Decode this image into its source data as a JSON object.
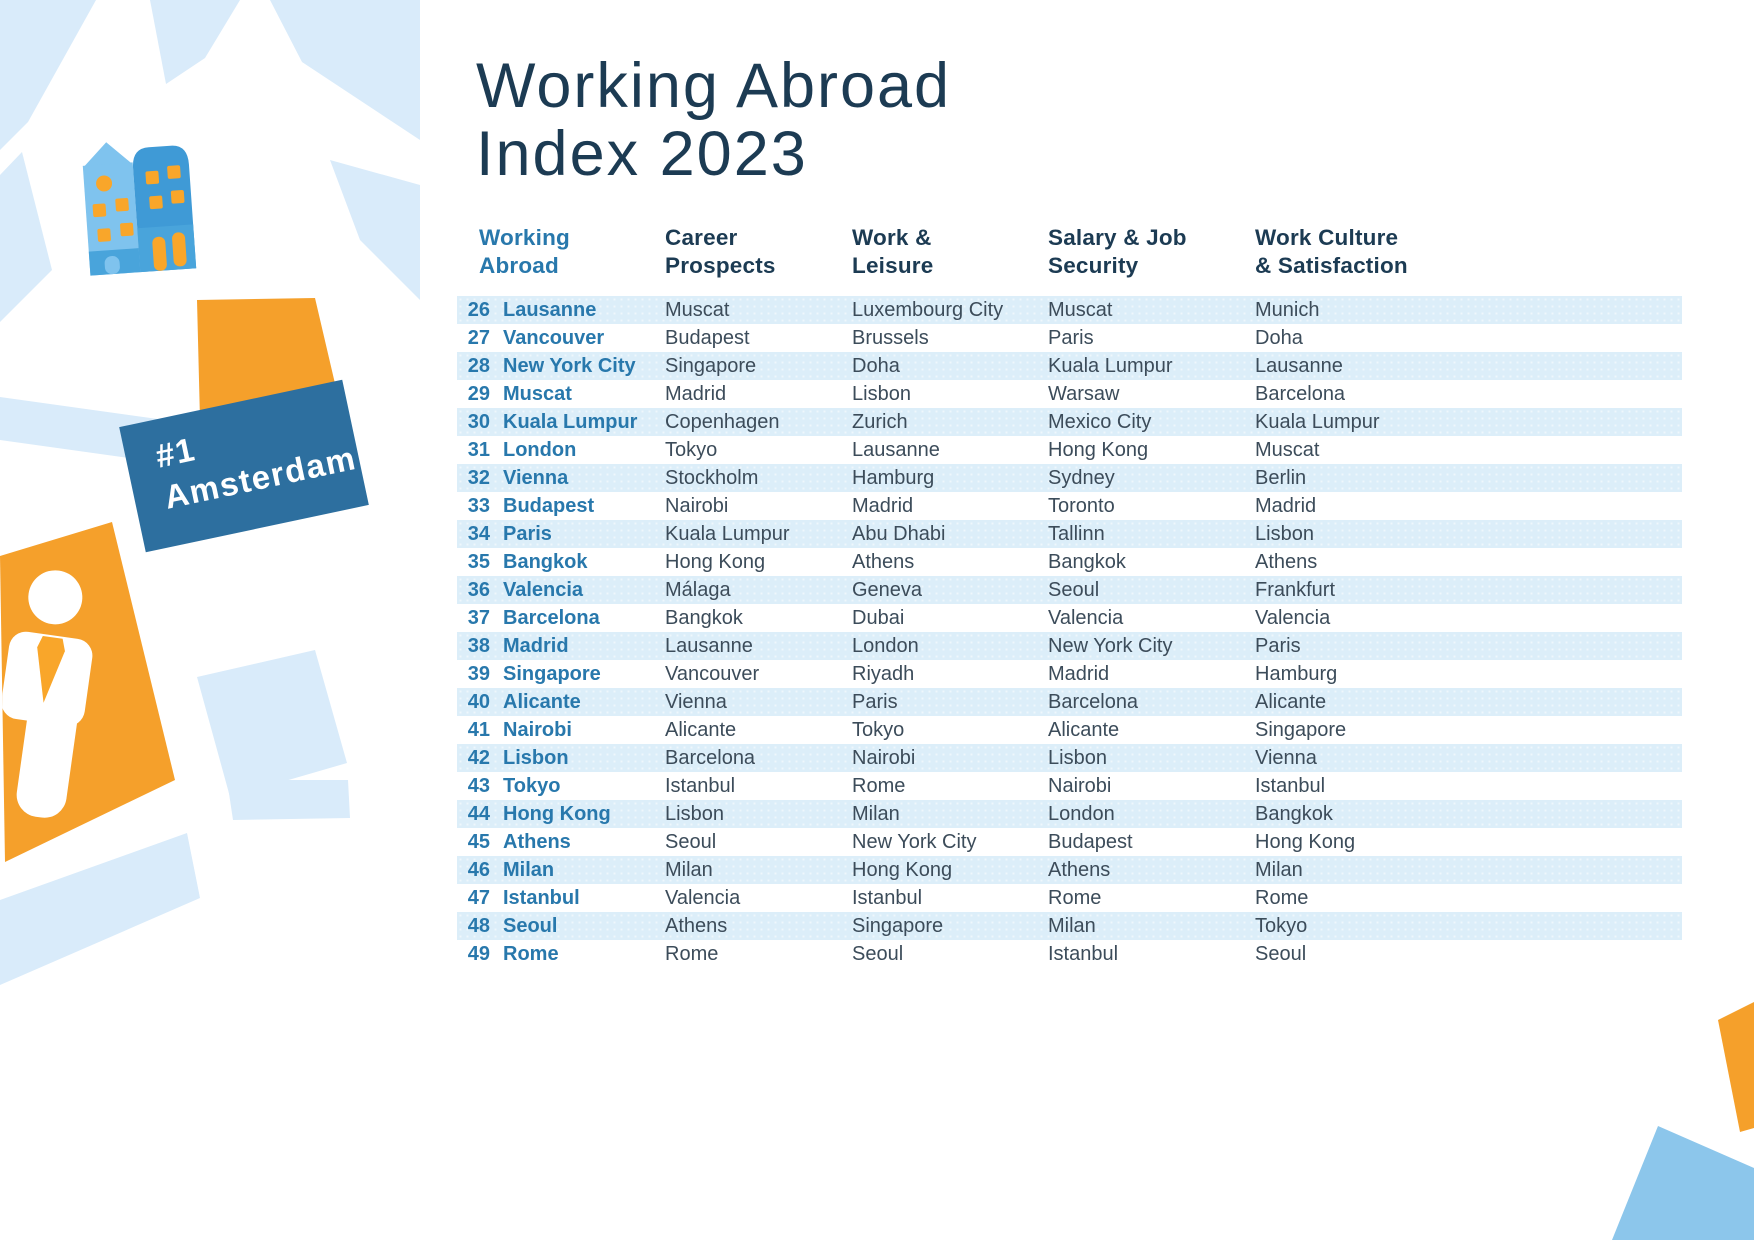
{
  "title": {
    "line1": "Working Abroad",
    "line2": "Index 2023"
  },
  "badge": {
    "line1": "#1",
    "line2": "Amsterdam"
  },
  "chart_data": {
    "type": "table",
    "title": "Working Abroad Index 2023",
    "columns": [
      "Working\nAbroad",
      "Career\nProspects",
      "Work &\nLeisure",
      "Salary & Job\nSecurity",
      "Work Culture\n& Satisfaction"
    ],
    "rows": [
      [
        "26",
        "Lausanne",
        "Muscat",
        "Luxembourg City",
        "Muscat",
        "Munich"
      ],
      [
        "27",
        "Vancouver",
        "Budapest",
        "Brussels",
        "Paris",
        "Doha"
      ],
      [
        "28",
        "New York City",
        "Singapore",
        "Doha",
        "Kuala Lumpur",
        "Lausanne"
      ],
      [
        "29",
        "Muscat",
        "Madrid",
        "Lisbon",
        "Warsaw",
        "Barcelona"
      ],
      [
        "30",
        "Kuala Lumpur",
        "Copenhagen",
        "Zurich",
        "Mexico City",
        "Kuala Lumpur"
      ],
      [
        "31",
        "London",
        "Tokyo",
        "Lausanne",
        "Hong Kong",
        "Muscat"
      ],
      [
        "32",
        "Vienna",
        "Stockholm",
        "Hamburg",
        "Sydney",
        "Berlin"
      ],
      [
        "33",
        "Budapest",
        "Nairobi",
        "Madrid",
        "Toronto",
        "Madrid"
      ],
      [
        "34",
        "Paris",
        "Kuala Lumpur",
        "Abu Dhabi",
        "Tallinn",
        "Lisbon"
      ],
      [
        "35",
        "Bangkok",
        "Hong Kong",
        "Athens",
        "Bangkok",
        "Athens"
      ],
      [
        "36",
        "Valencia",
        "Málaga",
        "Geneva",
        "Seoul",
        "Frankfurt"
      ],
      [
        "37",
        "Barcelona",
        "Bangkok",
        "Dubai",
        "Valencia",
        "Valencia"
      ],
      [
        "38",
        "Madrid",
        "Lausanne",
        "London",
        "New York City",
        "Paris"
      ],
      [
        "39",
        "Singapore",
        "Vancouver",
        "Riyadh",
        "Madrid",
        "Hamburg"
      ],
      [
        "40",
        "Alicante",
        "Vienna",
        "Paris",
        "Barcelona",
        "Alicante"
      ],
      [
        "41",
        "Nairobi",
        "Alicante",
        "Tokyo",
        "Alicante",
        "Singapore"
      ],
      [
        "42",
        "Lisbon",
        "Barcelona",
        "Nairobi",
        "Lisbon",
        "Vienna"
      ],
      [
        "43",
        "Tokyo",
        "Istanbul",
        "Rome",
        "Nairobi",
        "Istanbul"
      ],
      [
        "44",
        "Hong Kong",
        "Lisbon",
        "Milan",
        "London",
        "Bangkok"
      ],
      [
        "45",
        "Athens",
        "Seoul",
        "New York City",
        "Budapest",
        "Hong Kong"
      ],
      [
        "46",
        "Milan",
        "Milan",
        "Hong Kong",
        "Athens",
        "Milan"
      ],
      [
        "47",
        "Istanbul",
        "Valencia",
        "Istanbul",
        "Rome",
        "Rome"
      ],
      [
        "48",
        "Seoul",
        "Athens",
        "Singapore",
        "Milan",
        "Tokyo"
      ],
      [
        "49",
        "Rome",
        "Rome",
        "Seoul",
        "Istanbul",
        "Seoul"
      ]
    ]
  },
  "icons": {
    "canal_houses": "canal-houses-icon",
    "businessman": "businessman-icon"
  },
  "colors": {
    "navy": "#1C3B53",
    "accent_blue": "#2878AC",
    "body_text": "#3C4C5A",
    "stripe": "#DCEEF9",
    "map_light_blue": "#D9EBFA",
    "orange": "#F5A02B",
    "banner_blue": "#2D6F9F",
    "house_light_blue": "#7FC3EE",
    "house_mid_blue": "#3F9AD6",
    "house_base_blue": "#49A4DB",
    "window_orange": "#F9A62A",
    "corner_blue": "#8CC6EB"
  }
}
